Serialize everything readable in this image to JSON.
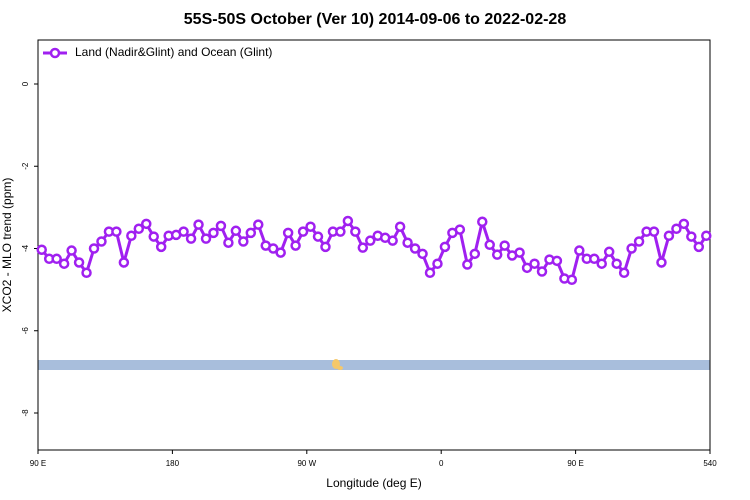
{
  "chart_data": {
    "type": "line",
    "title": "55S-50S October (Ver 10)   2014-09-06 to 2022-02-28",
    "x_label": "Longitude (deg E)",
    "y_label": "XCO2 - MLO trend (ppm)",
    "xlim": [
      90,
      540
    ],
    "ylim": [
      -8.9,
      1.07
    ],
    "xticks": [
      {
        "value": 90,
        "label": "90 E"
      },
      180,
      {
        "value": 270,
        "label": "90 W"
      },
      {
        "value": 360,
        "label": "0"
      },
      {
        "value": 450,
        "label": "90 E"
      },
      540
    ],
    "yticks": [
      0,
      -2,
      -4,
      -6,
      -8
    ],
    "legend": "top-left",
    "x": [
      92.5,
      97.5,
      102.5,
      107.5,
      112.5,
      117.5,
      122.5,
      127.5,
      132.5,
      137.5,
      142.5,
      147.5,
      152.5,
      157.5,
      162.5,
      167.5,
      172.5,
      177.5,
      182.5,
      187.5,
      192.5,
      197.5,
      202.5,
      207.5,
      212.5,
      217.5,
      222.5,
      227.5,
      232.5,
      237.5,
      242.5,
      247.5,
      252.5,
      257.5,
      262.5,
      267.5,
      272.5,
      277.5,
      282.5,
      287.5,
      292.5,
      297.5,
      302.5,
      307.5,
      312.5,
      317.5,
      322.5,
      327.5,
      332.5,
      337.5,
      342.5,
      347.5,
      352.5,
      357.5,
      362.5,
      367.5,
      372.5,
      377.5,
      382.5,
      387.5,
      392.5,
      397.5,
      402.5,
      407.5,
      412.5,
      417.5,
      422.5,
      427.5,
      432.5,
      437.5,
      442.5,
      447.5,
      452.5,
      457.5,
      462.5,
      467.5,
      472.5,
      477.5,
      482.5,
      487.5,
      492.5,
      497.5,
      502.5,
      507.5,
      512.5,
      517.5,
      522.5,
      527.5,
      532.5,
      537.5
    ],
    "series": [
      {
        "name": "Land (Nadir&Glint) and Ocean (Glint)",
        "color": "#a020f0",
        "values": [
          -4.03,
          -4.25,
          -4.25,
          -4.37,
          -4.05,
          -4.34,
          -4.59,
          -4.0,
          -3.83,
          -3.59,
          -3.59,
          -4.34,
          -3.69,
          -3.52,
          -3.4,
          -3.71,
          -3.96,
          -3.69,
          -3.67,
          -3.59,
          -3.76,
          -3.42,
          -3.76,
          -3.62,
          -3.45,
          -3.86,
          -3.57,
          -3.83,
          -3.62,
          -3.42,
          -3.93,
          -4.0,
          -4.1,
          -3.62,
          -3.93,
          -3.59,
          -3.47,
          -3.71,
          -3.96,
          -3.59,
          -3.59,
          -3.33,
          -3.59,
          -3.98,
          -3.81,
          -3.69,
          -3.74,
          -3.81,
          -3.47,
          -3.86,
          -4.0,
          -4.13,
          -4.59,
          -4.37,
          -3.96,
          -3.62,
          -3.54,
          -4.39,
          -4.13,
          -3.35,
          -3.91,
          -4.15,
          -3.93,
          -4.17,
          -4.1,
          -4.47,
          -4.37,
          -4.56,
          -4.27,
          -4.3,
          -4.73,
          -4.76,
          -4.05,
          -4.25,
          -4.25,
          -4.37,
          -4.08,
          -4.37,
          -4.59,
          -4.0,
          -3.83,
          -3.59,
          -3.59,
          -4.34,
          -3.69,
          -3.52,
          -3.4,
          -3.71,
          -3.96,
          -3.69
        ]
      }
    ]
  }
}
